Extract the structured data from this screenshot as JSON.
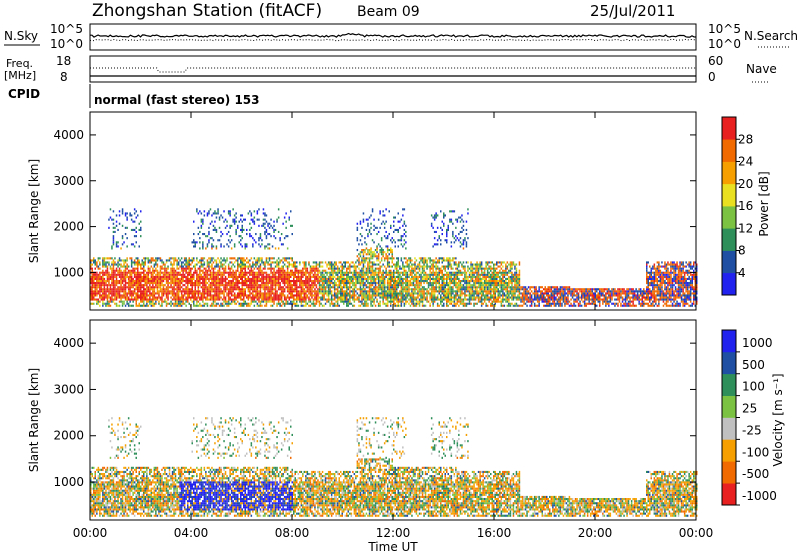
{
  "header": {
    "station": "Zhongshan Station (fitACF)",
    "beam": "Beam 09",
    "date": "25/Jul/2011"
  },
  "top_panels": {
    "nsky_label": "N.Sky",
    "nsearch_label": "N.Search",
    "nsky_ticks": [
      "10^5",
      "10^0"
    ],
    "nsearch_ticks": [
      "10^5",
      "10^0"
    ],
    "freq_label_1": "Freq.",
    "freq_label_2": "[MHz]",
    "freq_ticks": [
      "18",
      "8"
    ],
    "nave_label": "Nave",
    "nave_ticks": [
      "60",
      "0"
    ],
    "cpid_label": "CPID",
    "cpid_text": "normal (fast stereo) 153"
  },
  "colors": {
    "power_scale": [
      "#2222ee",
      "#1e4fa3",
      "#2e8f5a",
      "#7cc242",
      "#e8e020",
      "#f5a000",
      "#f06a00",
      "#e82020"
    ],
    "velocity_scale": [
      "#e82020",
      "#f06a00",
      "#f5a000",
      "#c0c0c0",
      "#7cc242",
      "#2e8f5a",
      "#1e4fa3",
      "#2222ee"
    ]
  },
  "chart_data": [
    {
      "type": "heatmap",
      "name": "power",
      "ylabel": "Slant Range [km]",
      "ylim": [
        180,
        4500
      ],
      "xlim": [
        0,
        24
      ],
      "yticks": [
        "1000",
        "2000",
        "3000",
        "4000"
      ],
      "ytick_values": [
        1000,
        2000,
        3000,
        4000
      ],
      "colorbar_label": "Power [dB]",
      "colorbar_ticks": [
        "4",
        "8",
        "12",
        "16",
        "20",
        "24",
        "28"
      ],
      "colorbar_values": [
        4,
        8,
        12,
        16,
        20,
        24,
        28
      ],
      "colorbar_range": [
        0,
        32
      ]
    },
    {
      "type": "heatmap",
      "name": "velocity",
      "ylabel": "Slant Range [km]",
      "ylim": [
        180,
        4500
      ],
      "xlim": [
        0,
        24
      ],
      "yticks": [
        "1000",
        "2000",
        "3000",
        "4000"
      ],
      "ytick_values": [
        1000,
        2000,
        3000,
        4000
      ],
      "xlabel": "Time UT",
      "xticks": [
        "00:00",
        "04:00",
        "08:00",
        "12:00",
        "16:00",
        "20:00",
        "00:00"
      ],
      "xtick_values": [
        0,
        4,
        8,
        12,
        16,
        20,
        24
      ],
      "colorbar_label": "Velocity [m s⁻¹]",
      "colorbar_ticks": [
        "1000",
        "500",
        "100",
        "25",
        "-25",
        "-100",
        "-500",
        "-1000"
      ]
    }
  ]
}
